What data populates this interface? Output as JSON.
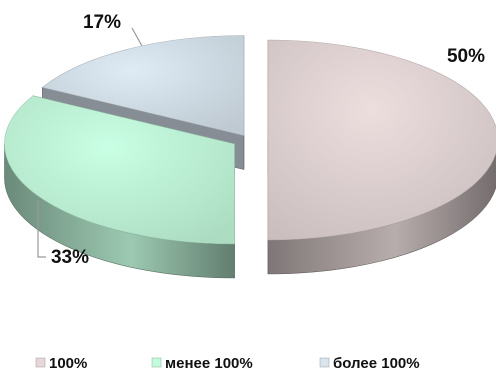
{
  "chart_data": {
    "type": "pie",
    "style": "3d-exploded",
    "categories": [
      "100%",
      "менее 100%",
      "более 100%"
    ],
    "values": [
      50,
      33,
      17
    ],
    "value_labels": [
      "50%",
      "33%",
      "17%"
    ],
    "colors": [
      "#e6d8d8",
      "#c3fbdd",
      "#d8e4ee"
    ],
    "legend_position": "bottom"
  }
}
